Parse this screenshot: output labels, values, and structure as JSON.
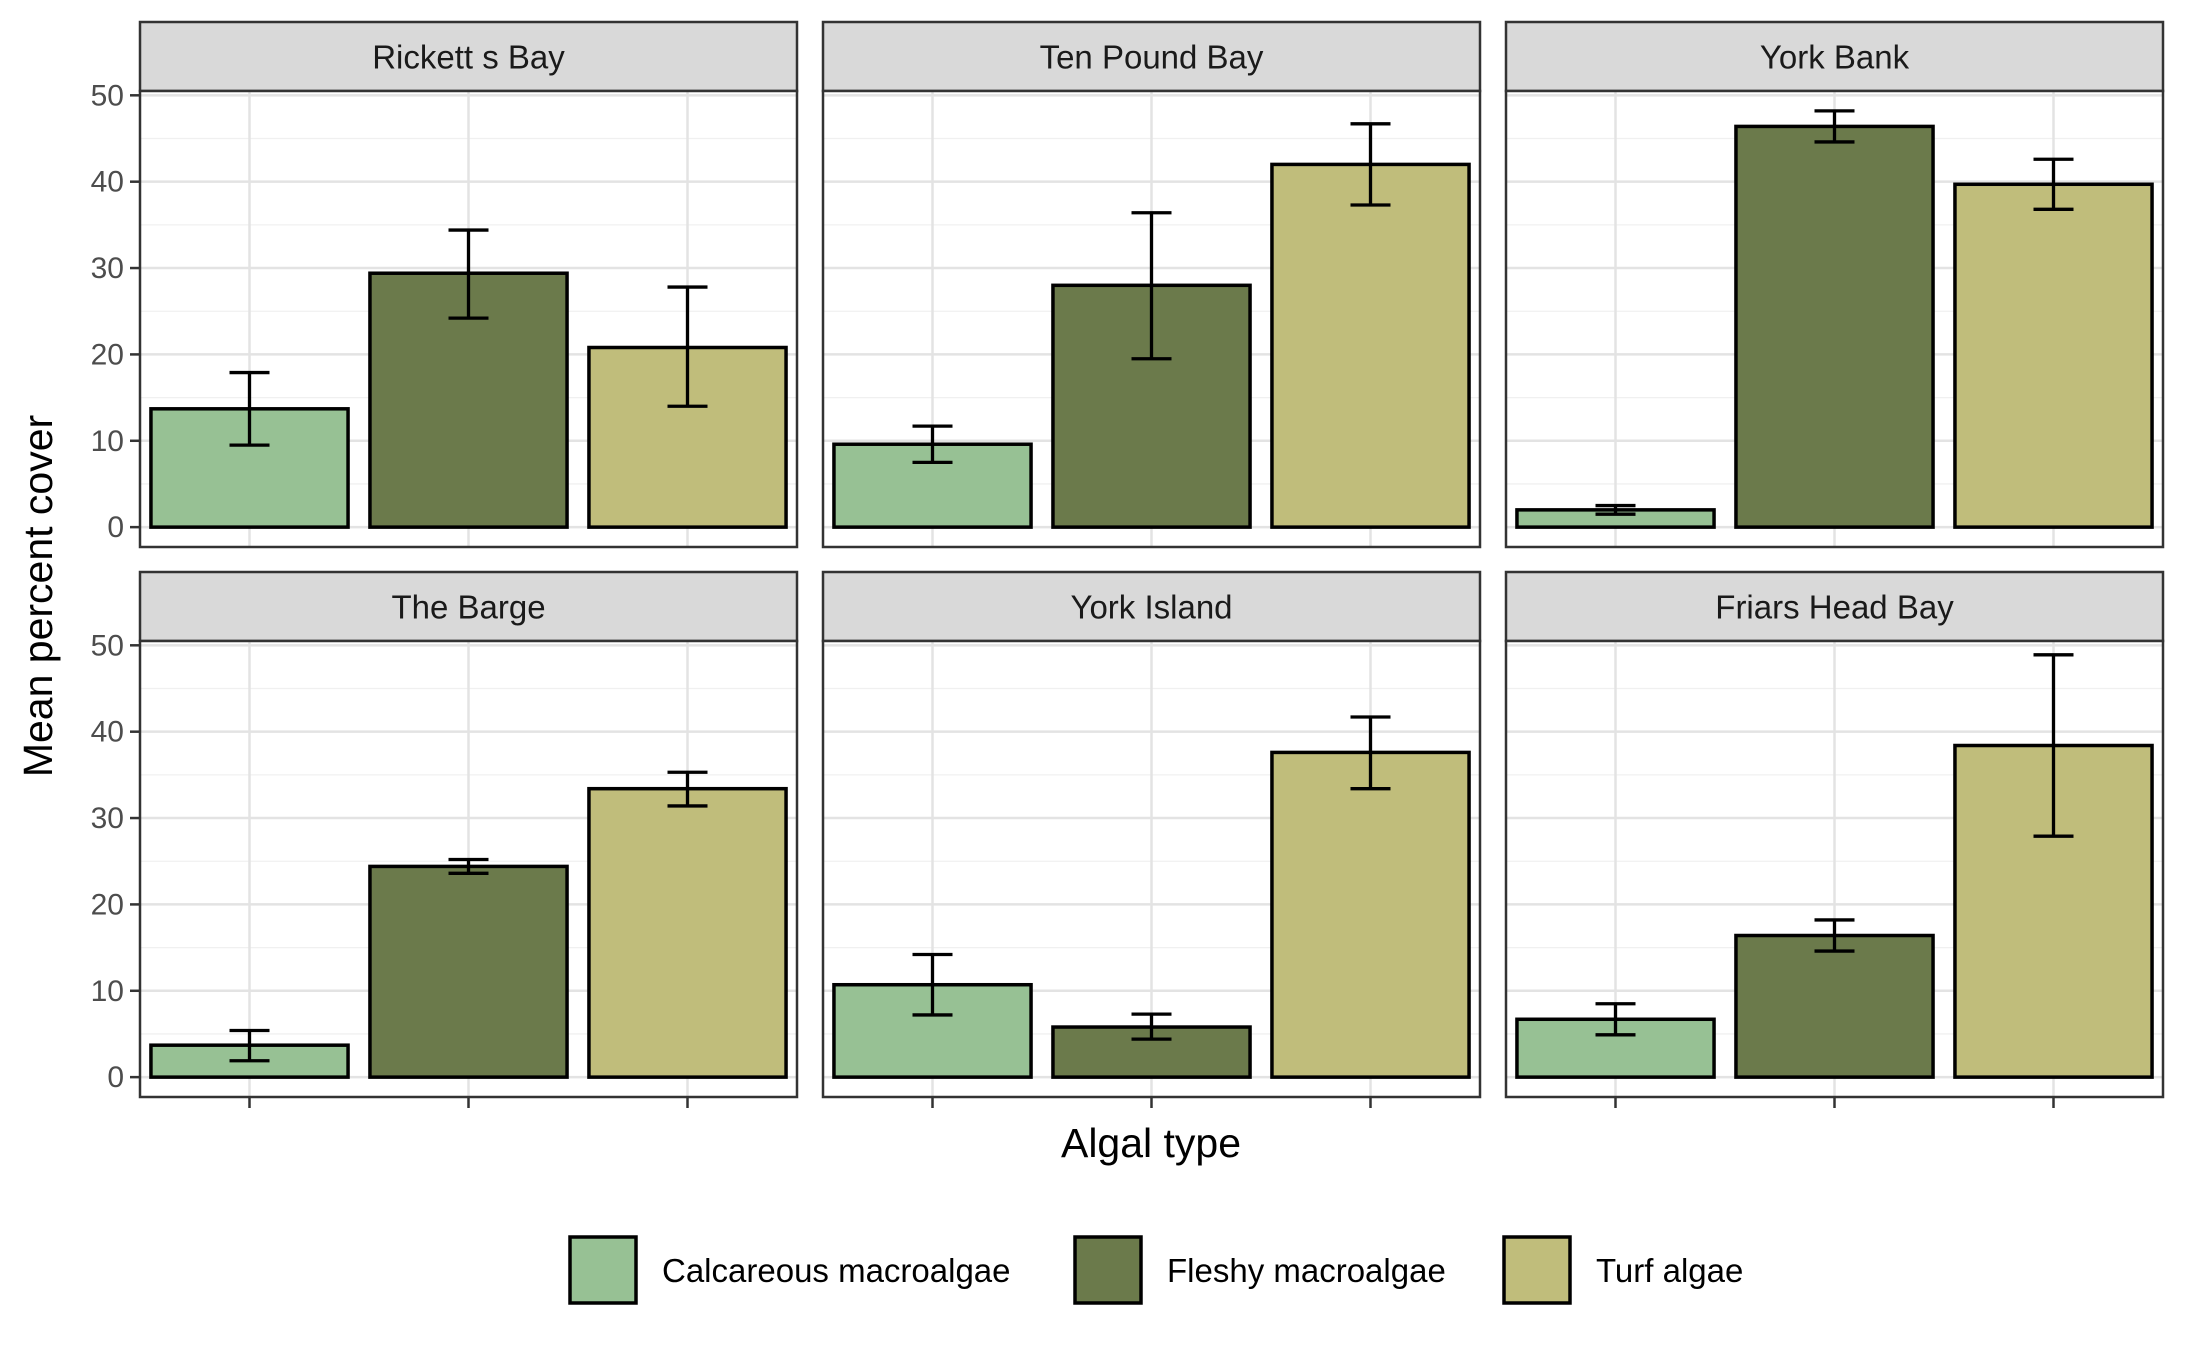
{
  "chart_data": {
    "type": "bar",
    "xlabel": "Algal type",
    "ylabel": "Mean percent cover",
    "ylim": [
      -2.3,
      50.5
    ],
    "yticks": [
      0,
      10,
      20,
      30,
      40,
      50
    ],
    "grid": true,
    "legend_position": "bottom",
    "categories": [
      "Calcareous macroalgae",
      "Fleshy macroalgae",
      "Turf algae"
    ],
    "colors": [
      "#97c194",
      "#6b7a4b",
      "#c0bd7b"
    ],
    "panels": [
      {
        "title": "Rickett s Bay",
        "values": [
          13.7,
          29.4,
          20.8
        ],
        "err_low": [
          9.5,
          24.2,
          14.0
        ],
        "err_high": [
          17.9,
          34.4,
          27.8
        ]
      },
      {
        "title": "Ten Pound Bay",
        "values": [
          9.6,
          28.0,
          42.0
        ],
        "err_low": [
          7.5,
          19.5,
          37.3
        ],
        "err_high": [
          11.7,
          36.4,
          46.7
        ]
      },
      {
        "title": "York Bank",
        "values": [
          2.0,
          46.4,
          39.7
        ],
        "err_low": [
          1.5,
          44.6,
          36.8
        ],
        "err_high": [
          2.5,
          48.2,
          42.6
        ]
      },
      {
        "title": "The Barge",
        "values": [
          3.7,
          24.4,
          33.4
        ],
        "err_low": [
          1.9,
          23.6,
          31.4
        ],
        "err_high": [
          5.4,
          25.2,
          35.3
        ]
      },
      {
        "title": "York Island",
        "values": [
          10.7,
          5.8,
          37.6
        ],
        "err_low": [
          7.2,
          4.4,
          33.4
        ],
        "err_high": [
          14.2,
          7.3,
          41.7
        ]
      },
      {
        "title": "Friars Head Bay",
        "values": [
          6.7,
          16.4,
          38.4
        ],
        "err_low": [
          4.9,
          14.6,
          27.9
        ],
        "err_high": [
          8.5,
          18.2,
          48.9
        ]
      }
    ]
  }
}
